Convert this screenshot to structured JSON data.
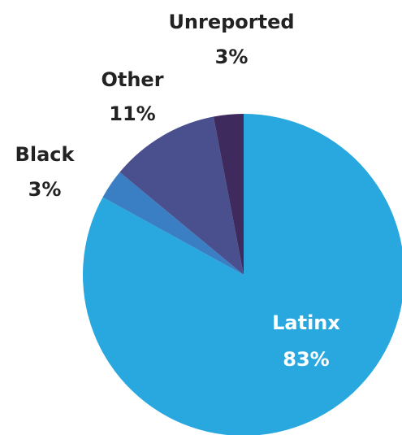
{
  "chart_data": {
    "type": "pie",
    "title": "",
    "legend": "none",
    "slices": [
      {
        "name": "Latinx",
        "value": 83,
        "label": "83%",
        "color": "#29A8E0"
      },
      {
        "name": "Black",
        "value": 3,
        "label": "3%",
        "color": "#3A7EC4"
      },
      {
        "name": "Other",
        "value": 11,
        "label": "11%",
        "color": "#4A4F8E"
      },
      {
        "name": "Unreported",
        "value": 3,
        "label": "3%",
        "color": "#3F2A5E"
      }
    ]
  }
}
